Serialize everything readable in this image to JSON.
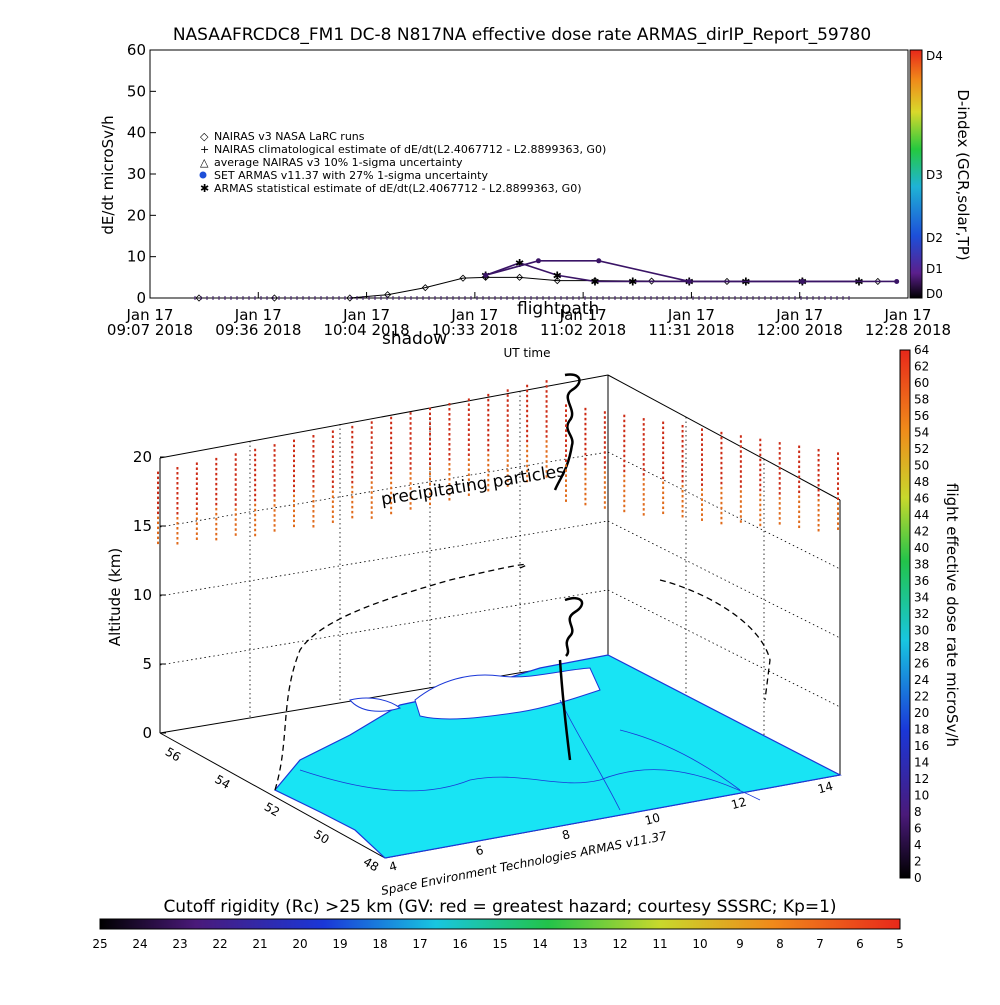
{
  "title": "NASAAFRCDC8_FM1 DC-8    N817NA effective dose rate ARMAS_dirIP_Report_59780",
  "chart_data": [
    {
      "type": "scatter",
      "ylabel": "dE/dt microSv/h",
      "xlabel": "UT time",
      "ylim": [
        0,
        60
      ],
      "yticks": [
        "0",
        "10",
        "20",
        "30",
        "40",
        "50",
        "60"
      ],
      "xticks": [
        {
          "date": "Jan 17",
          "time": "09:07 2018"
        },
        {
          "date": "Jan 17",
          "time": "09:36 2018"
        },
        {
          "date": "Jan 17",
          "time": "10:04 2018"
        },
        {
          "date": "Jan 17",
          "time": "10:33 2018"
        },
        {
          "date": "Jan 17",
          "time": "11:02 2018"
        },
        {
          "date": "Jan 17",
          "time": "11:31 2018"
        },
        {
          "date": "Jan 17",
          "time": "12:00 2018"
        },
        {
          "date": "Jan 17",
          "time": "12:28 2018"
        }
      ],
      "legend": [
        "NAIRAS v3 NASA LaRC runs",
        "NAIRAS climatological estimate of dE/dt(L2.4067712 - L2.8899363, G0)",
        "average NAIRAS v3 10% 1-sigma uncertainty",
        "SET ARMAS v11.37 with 27% 1-sigma uncertainty",
        "ARMAS statistical estimate of dE/dt(L2.4067712 - L2.8899363, G0)"
      ],
      "legend_placement": "upper-left",
      "series": [
        {
          "name": "NAIRAS v3 NASA LaRC runs",
          "x": [
            "09:20",
            "09:40",
            "10:00",
            "10:10",
            "10:20",
            "10:30",
            "10:36",
            "10:45",
            "10:55",
            "11:05",
            "11:20",
            "11:40",
            "12:00",
            "12:20"
          ],
          "y": [
            0,
            0,
            0,
            0.8,
            2.5,
            4.8,
            5.0,
            5.0,
            4.2,
            4.2,
            4.1,
            4.0,
            4.0,
            4.0
          ]
        },
        {
          "name": "ARMAS statistical estimate of dE/dt(L2.4067712 - L2.8899363, G0)",
          "x": [
            "10:36",
            "10:45",
            "10:55",
            "11:05",
            "11:15",
            "11:30",
            "11:45",
            "12:00",
            "12:15"
          ],
          "y": [
            5.5,
            8.5,
            5.5,
            4.0,
            4.0,
            4.0,
            4.0,
            4.0,
            4.0
          ]
        },
        {
          "name": "SET ARMAS v11.37 with 27% 1-sigma uncertainty",
          "x": [
            "10:36",
            "10:50",
            "11:06",
            "11:30",
            "12:00",
            "12:25"
          ],
          "y": [
            5.5,
            9.0,
            9.0,
            4.0,
            4.0,
            4.0
          ]
        }
      ],
      "dindex_colorbar": {
        "label": "D-index (GCR,solar,TP)",
        "ticks": [
          "D0",
          "D1",
          "D2",
          "D3",
          "D4"
        ],
        "colors": [
          "#000000",
          "#5b1f8c",
          "#1d4fd8",
          "#1fb3d6",
          "#25c93f",
          "#d9d92b",
          "#f08a1a",
          "#e8281a"
        ]
      }
    },
    {
      "type": "3d-map",
      "zlabel": "Altitude (km)",
      "zticks": [
        "0",
        "5",
        "10",
        "15",
        "20"
      ],
      "lat_ticks": [
        "56",
        "54",
        "52",
        "50",
        "48"
      ],
      "lon_ticks": [
        "4",
        "6",
        "8",
        "10",
        "12",
        "14"
      ],
      "annotations": [
        "flightpath",
        "shadow",
        "precipitating particles"
      ],
      "credit": "Space Environment Technologies ARMAS v11.37",
      "dose_colorbar": {
        "label": "flight effective dose rate microSv/h",
        "ticks": [
          "0",
          "2",
          "4",
          "6",
          "8",
          "10",
          "12",
          "14",
          "16",
          "18",
          "20",
          "22",
          "24",
          "26",
          "28",
          "30",
          "32",
          "34",
          "36",
          "38",
          "40",
          "42",
          "44",
          "46",
          "48",
          "50",
          "52",
          "54",
          "56",
          "58",
          "60",
          "62",
          "64"
        ]
      },
      "rigidity_colorbar": {
        "label": "Cutoff rigidity (Rc) >25 km (GV: red = greatest hazard; courtesy SSSRC; Kp=1)",
        "ticks": [
          "25",
          "24",
          "23",
          "22",
          "21",
          "20",
          "19",
          "18",
          "17",
          "16",
          "15",
          "14",
          "13",
          "12",
          "11",
          "10",
          "9",
          "8",
          "7",
          "6",
          "5"
        ]
      },
      "colors": {
        "map_fill": "#18e4f4",
        "precip_high": "#cc2a14",
        "precip_low": "#e06a1a"
      }
    }
  ]
}
